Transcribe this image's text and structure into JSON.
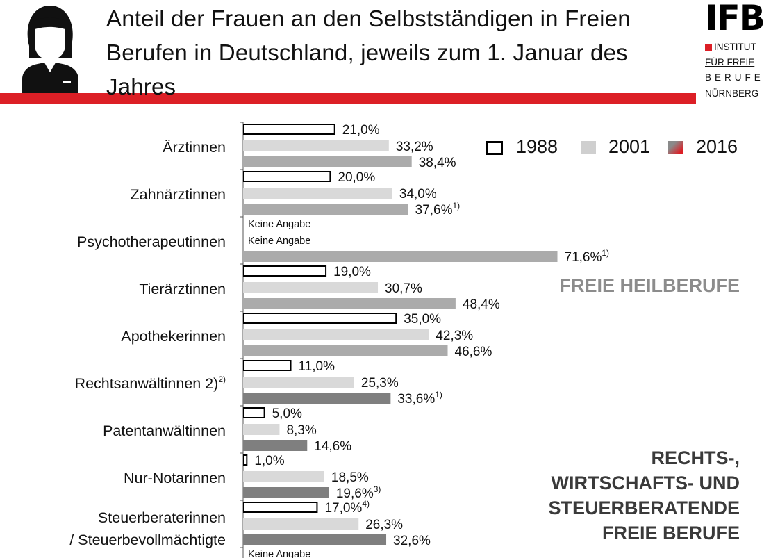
{
  "header": {
    "title": "Anteil der Frauen an den Selbstständigen in Freien Berufen in Deutschland, jeweils zum 1. Januar des Jahres"
  },
  "logo": {
    "ifb": "IFB",
    "line1": "INSTITUT",
    "line2": "FÜR FREIE",
    "line3": "BERUFE",
    "line4": "NÜRNBERG",
    "accent_color": "#dc1f26"
  },
  "sections": {
    "heil": "FREIE HEILBERUFE",
    "rechts_1": "RECHTS-,",
    "rechts_2": "WIRTSCHAFTS-  UND",
    "rechts_3": "STEUERBERATENDE",
    "rechts_4": "FREIE BERUFE"
  },
  "chart_data": {
    "type": "bar",
    "orientation": "horizontal",
    "legend_position": "top-right",
    "xlim": [
      0,
      80
    ],
    "categories": [
      "Ärztinnen",
      "Zahnärztinnen",
      "Psychotherapeutinnen",
      "Tierärztinnen",
      "Apothekerinnen",
      "Rechtsanwältinnen 2)",
      "Patentanwältinnen",
      "Nur-Notarinnen",
      "Steuerberaterinnen / Steuerbevollmächtigte"
    ],
    "category_lines": [
      [
        "Ärztinnen"
      ],
      [
        "Zahnärztinnen"
      ],
      [
        "Psychotherapeutinnen"
      ],
      [
        "Tierärztinnen"
      ],
      [
        "Apothekerinnen"
      ],
      [
        "Rechtsanwältinnen 2)"
      ],
      [
        "Patentanwältinnen"
      ],
      [
        "Nur-Notarinnen"
      ],
      [
        "Steuerberaterinnen",
        "/ Steuerbevollmächtigte"
      ]
    ],
    "category_footnotes": [
      "",
      "",
      "",
      "",
      "",
      "2)",
      "",
      "",
      ""
    ],
    "no_data_label": "Keine Angabe",
    "series": [
      {
        "name": "1988",
        "values": [
          21.0,
          20.0,
          null,
          19.0,
          35.0,
          11.0,
          5.0,
          1.0,
          17.0
        ],
        "labels": [
          "21,0%",
          "20,0%",
          "Keine Angabe",
          "19,0%",
          "35,0%",
          "11,0%",
          "5,0%",
          "1,0%",
          "17,0%"
        ],
        "footnotes": [
          "",
          "",
          "",
          "",
          "",
          "",
          "",
          "",
          "4)"
        ]
      },
      {
        "name": "2001",
        "values": [
          33.2,
          34.0,
          null,
          30.7,
          42.3,
          25.3,
          8.3,
          18.5,
          26.3
        ],
        "labels": [
          "33,2%",
          "34,0%",
          "Keine Angabe",
          "30,7%",
          "42,3%",
          "25,3%",
          "8,3%",
          "18,5%",
          "26,3%"
        ],
        "footnotes": [
          "",
          "",
          "",
          "",
          "",
          "",
          "",
          "",
          ""
        ]
      },
      {
        "name": "2016",
        "values": [
          38.4,
          37.6,
          71.6,
          48.4,
          46.6,
          33.6,
          14.6,
          19.6,
          32.6
        ],
        "labels": [
          "38,4%",
          "37,6%",
          "71,6%",
          "48,4%",
          "46,6%",
          "33,6%",
          "14,6%",
          "19,6%",
          "32,6%"
        ],
        "footnotes": [
          "",
          "1)",
          "1)",
          "",
          "",
          "1)",
          "",
          "3)",
          ""
        ]
      }
    ],
    "trailing_note": "Keine Angabe",
    "colors": {
      "s1988_fill": "#ffffff",
      "s1988_stroke": "#000000",
      "s2001": "#d9d9d9",
      "s2016_heil": "#ababab",
      "s2016_recht": "#7f7f7f",
      "legend_2016_gradient": [
        "#8a8a8a",
        "#dc1f26"
      ]
    }
  }
}
